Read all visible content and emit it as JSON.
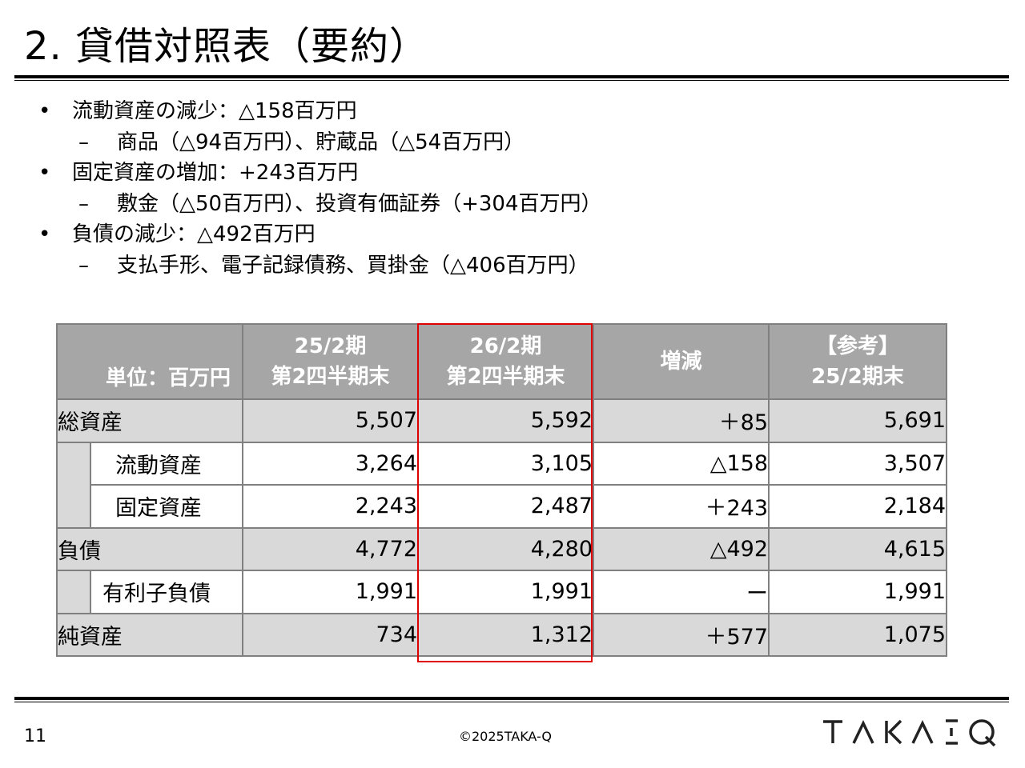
{
  "title": "2. 貸借対照表（要約）",
  "bullets": [
    {
      "type": "main",
      "marker": "•",
      "text": "流動資産の減少：△158百万円"
    },
    {
      "type": "sub",
      "marker": "–",
      "text": "商品（△94百万円）、貯蔵品（△54百万円）"
    },
    {
      "type": "main",
      "marker": "•",
      "text": "固定資産の増加：+243百万円"
    },
    {
      "type": "sub",
      "marker": "–",
      "text": "敷金（△50百万円）、投資有価証券（+304百万円）"
    },
    {
      "type": "main",
      "marker": "•",
      "text": "負債の減少：△492百万円"
    },
    {
      "type": "sub",
      "marker": "–",
      "text": "支払手形、電子記録債務、買掛金（△406百万円）"
    }
  ],
  "table": {
    "unit": "単位：百万円",
    "headers": [
      {
        "l1": "25/2期",
        "l2": "第2四半期末"
      },
      {
        "l1": "26/2期",
        "l2": "第2四半期末"
      },
      {
        "l1": "増減",
        "l2": ""
      },
      {
        "l1": "【参考】",
        "l2": "25/2期末"
      }
    ],
    "rows": [
      {
        "label": "総資産",
        "v1": "5,507",
        "v2": "5,592",
        "diff": "＋85",
        "ref": "5,691"
      },
      {
        "label": "流動資産",
        "v1": "3,264",
        "v2": "3,105",
        "diff": "△158",
        "ref": "3,507"
      },
      {
        "label": "固定資産",
        "v1": "2,243",
        "v2": "2,487",
        "diff": "＋243",
        "ref": "2,184"
      },
      {
        "label": "負債",
        "v1": "4,772",
        "v2": "4,280",
        "diff": "△492",
        "ref": "4,615"
      },
      {
        "label": "有利子負債",
        "v1": "1,991",
        "v2": "1,991",
        "diff": "ー",
        "ref": "1,991"
      },
      {
        "label": "純資産",
        "v1": "734",
        "v2": "1,312",
        "diff": "＋577",
        "ref": "1,075"
      }
    ]
  },
  "footer": {
    "page": "11",
    "copyright": "©2025TAKA-Q",
    "logo_text": "TAKAQ"
  },
  "colors": {
    "header_bg": "#a6a6a6",
    "row_grey": "#d9d9d9",
    "highlight": "#e00000"
  }
}
